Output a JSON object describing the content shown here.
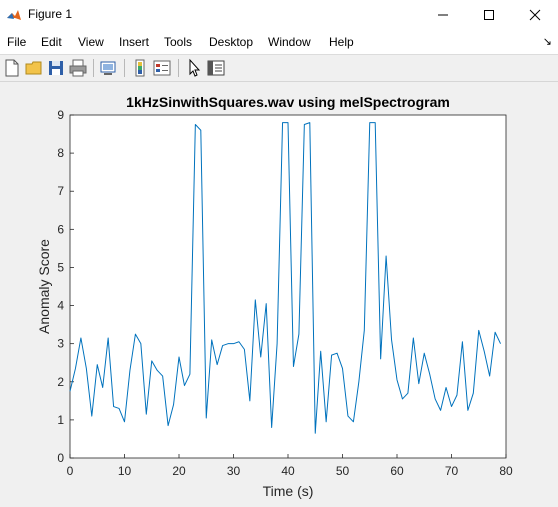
{
  "window": {
    "title": "Figure 1"
  },
  "menu": [
    "File",
    "Edit",
    "View",
    "Insert",
    "Tools",
    "Desktop",
    "Window",
    "Help"
  ],
  "toolbar": {
    "icons": [
      "new-figure-icon",
      "open-file-icon",
      "save-icon",
      "print-icon",
      "link-plot-icon",
      "insert-colorbar-icon",
      "insert-legend-icon",
      "edit-plot-arrow-icon",
      "property-inspector-icon"
    ]
  },
  "chart_data": {
    "type": "line",
    "title": "1kHzSinwithSquares.wav using melSpectrogram",
    "xlabel": "Time (s)",
    "ylabel": "Anomaly Score",
    "xlim": [
      0,
      80
    ],
    "ylim": [
      0,
      9
    ],
    "xticks": [
      "0",
      "10",
      "20",
      "30",
      "40",
      "50",
      "60",
      "70",
      "80"
    ],
    "yticks": [
      "0",
      "1",
      "2",
      "3",
      "4",
      "5",
      "6",
      "7",
      "8",
      "9"
    ],
    "grid": false,
    "color": "#0072bd",
    "x": [
      0,
      1,
      2,
      3,
      4,
      5,
      6,
      7,
      8,
      9,
      10,
      11,
      12,
      13,
      14,
      15,
      16,
      17,
      18,
      19,
      20,
      21,
      22,
      23,
      24,
      25,
      26,
      27,
      28,
      29,
      30,
      31,
      32,
      33,
      34,
      35,
      36,
      37,
      38,
      39,
      40,
      41,
      42,
      43,
      44,
      45,
      46,
      47,
      48,
      49,
      50,
      51,
      52,
      53,
      54,
      55,
      56,
      57,
      58,
      59,
      60,
      61,
      62,
      63,
      64,
      65,
      66,
      67,
      68,
      69,
      70,
      71,
      72,
      73,
      74,
      75,
      76,
      77,
      78,
      79
    ],
    "y": [
      1.75,
      2.35,
      3.15,
      2.35,
      1.1,
      2.45,
      1.85,
      3.15,
      1.35,
      1.3,
      0.95,
      2.3,
      3.25,
      3.0,
      1.15,
      2.55,
      2.3,
      2.15,
      0.85,
      1.4,
      2.65,
      1.9,
      2.2,
      8.75,
      8.6,
      1.05,
      3.1,
      2.45,
      2.95,
      3.0,
      3.0,
      3.05,
      2.85,
      1.5,
      4.15,
      2.65,
      4.05,
      0.8,
      3.0,
      8.8,
      8.8,
      2.4,
      3.25,
      8.75,
      8.8,
      0.65,
      2.8,
      0.95,
      2.7,
      2.75,
      2.35,
      1.1,
      0.95,
      2.0,
      3.35,
      8.8,
      8.8,
      2.6,
      5.3,
      3.1,
      2.05,
      1.55,
      1.7,
      3.15,
      1.95,
      2.75,
      2.2,
      1.55,
      1.25,
      1.85,
      1.35,
      1.65,
      3.05,
      1.25,
      1.7,
      3.35,
      2.8,
      2.15,
      3.3,
      3.0
    ]
  }
}
